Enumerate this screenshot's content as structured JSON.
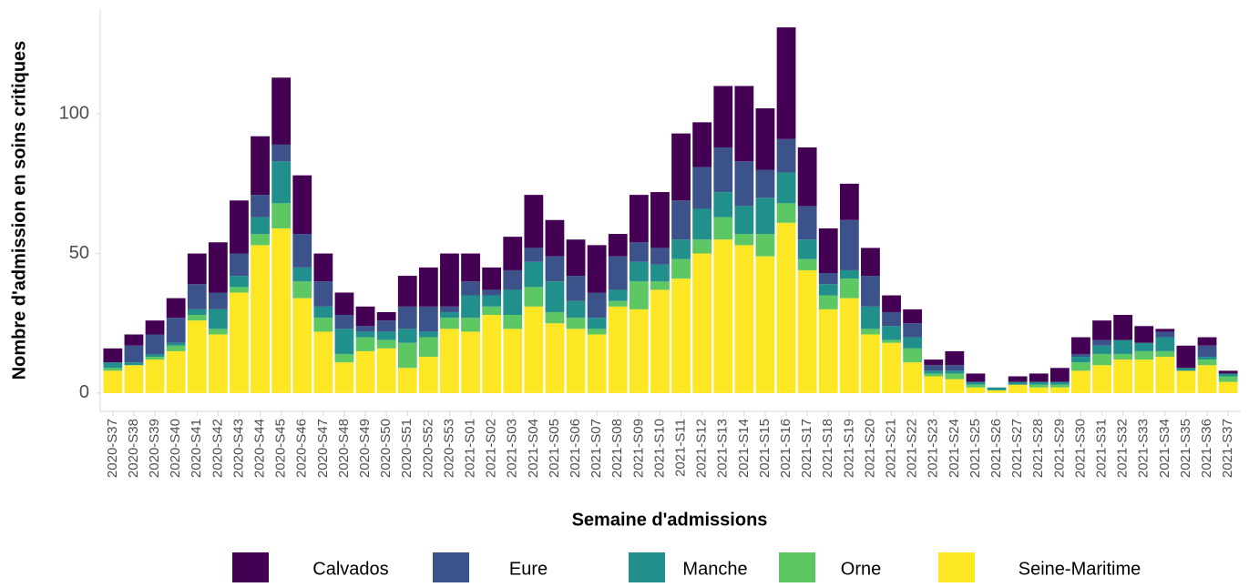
{
  "chart_data": {
    "type": "stacked_bar",
    "x_label": "Semaine d'admissions",
    "y_label": "Nombre d'admission en soins critiques",
    "categories": [
      "2020-S37",
      "2020-S38",
      "2020-S39",
      "2020-S40",
      "2020-S41",
      "2020-S42",
      "2020-S43",
      "2020-S44",
      "2020-S45",
      "2020-S46",
      "2020-S47",
      "2020-S48",
      "2020-S49",
      "2020-S50",
      "2020-S51",
      "2020-S52",
      "2020-S53",
      "2021-S01",
      "2021-S02",
      "2021-S03",
      "2021-S04",
      "2021-S05",
      "2021-S06",
      "2021-S07",
      "2021-S08",
      "2021-S09",
      "2021-S10",
      "2021-S11",
      "2021-S12",
      "2021-S13",
      "2021-S14",
      "2021-S15",
      "2021-S16",
      "2021-S17",
      "2021-S18",
      "2021-S19",
      "2021-S20",
      "2021-S21",
      "2021-S22",
      "2021-S23",
      "2021-S24",
      "2021-S25",
      "2021-S26",
      "2021-S27",
      "2021-S28",
      "2021-S29",
      "2021-S30",
      "2021-S31",
      "2021-S32",
      "2021-S33",
      "2021-S34",
      "2021-S35",
      "2021-S36",
      "2021-S37"
    ],
    "series": [
      {
        "name": "Seine-Maritime",
        "color": "#fde725",
        "values": [
          8,
          10,
          12,
          15,
          26,
          21,
          36,
          53,
          59,
          34,
          22,
          11,
          15,
          16,
          9,
          13,
          23,
          22,
          28,
          23,
          31,
          25,
          23,
          21,
          31,
          30,
          37,
          41,
          50,
          55,
          53,
          49,
          61,
          44,
          30,
          34,
          21,
          18,
          11,
          6,
          5,
          2,
          1,
          3,
          2,
          2,
          8,
          10,
          12,
          12,
          13,
          8,
          10,
          4
        ]
      },
      {
        "name": "Orne",
        "color": "#5dc863",
        "values": [
          1,
          0,
          1,
          2,
          2,
          2,
          2,
          4,
          9,
          6,
          5,
          3,
          5,
          3,
          9,
          7,
          4,
          5,
          3,
          5,
          7,
          4,
          4,
          2,
          2,
          10,
          3,
          7,
          5,
          8,
          4,
          8,
          7,
          4,
          5,
          7,
          2,
          1,
          5,
          1,
          2,
          1,
          0,
          0,
          1,
          1,
          3,
          4,
          2,
          3,
          2,
          0,
          2,
          2
        ]
      },
      {
        "name": "Manche",
        "color": "#21908c",
        "values": [
          2,
          1,
          1,
          1,
          2,
          7,
          4,
          6,
          15,
          5,
          4,
          9,
          2,
          3,
          5,
          2,
          2,
          8,
          4,
          9,
          9,
          11,
          6,
          4,
          4,
          7,
          6,
          7,
          11,
          9,
          10,
          13,
          11,
          7,
          4,
          3,
          8,
          5,
          4,
          1,
          1,
          1,
          1,
          1,
          1,
          1,
          2,
          3,
          5,
          3,
          5,
          1,
          1,
          1
        ]
      },
      {
        "name": "Eure",
        "color": "#3b528b",
        "values": [
          0,
          6,
          7,
          9,
          9,
          6,
          8,
          8,
          6,
          12,
          9,
          5,
          2,
          4,
          8,
          9,
          2,
          5,
          2,
          7,
          5,
          9,
          9,
          9,
          12,
          7,
          6,
          14,
          15,
          16,
          16,
          10,
          12,
          12,
          4,
          18,
          11,
          5,
          5,
          2,
          2,
          0,
          0,
          0,
          0,
          0,
          1,
          2,
          0,
          0,
          2,
          0,
          4,
          0
        ]
      },
      {
        "name": "Calvados",
        "color": "#440154",
        "values": [
          5,
          4,
          5,
          7,
          11,
          18,
          19,
          21,
          24,
          21,
          10,
          8,
          7,
          3,
          11,
          14,
          19,
          10,
          8,
          12,
          19,
          13,
          13,
          17,
          8,
          17,
          20,
          24,
          16,
          22,
          27,
          22,
          40,
          21,
          16,
          13,
          10,
          6,
          5,
          2,
          5,
          3,
          0,
          2,
          3,
          5,
          6,
          7,
          9,
          6,
          1,
          8,
          3,
          1
        ]
      }
    ],
    "ylim": [
      -6.55,
      137.55
    ],
    "yticks": [
      0,
      50,
      100
    ],
    "grid": false,
    "legend": "bottom"
  }
}
